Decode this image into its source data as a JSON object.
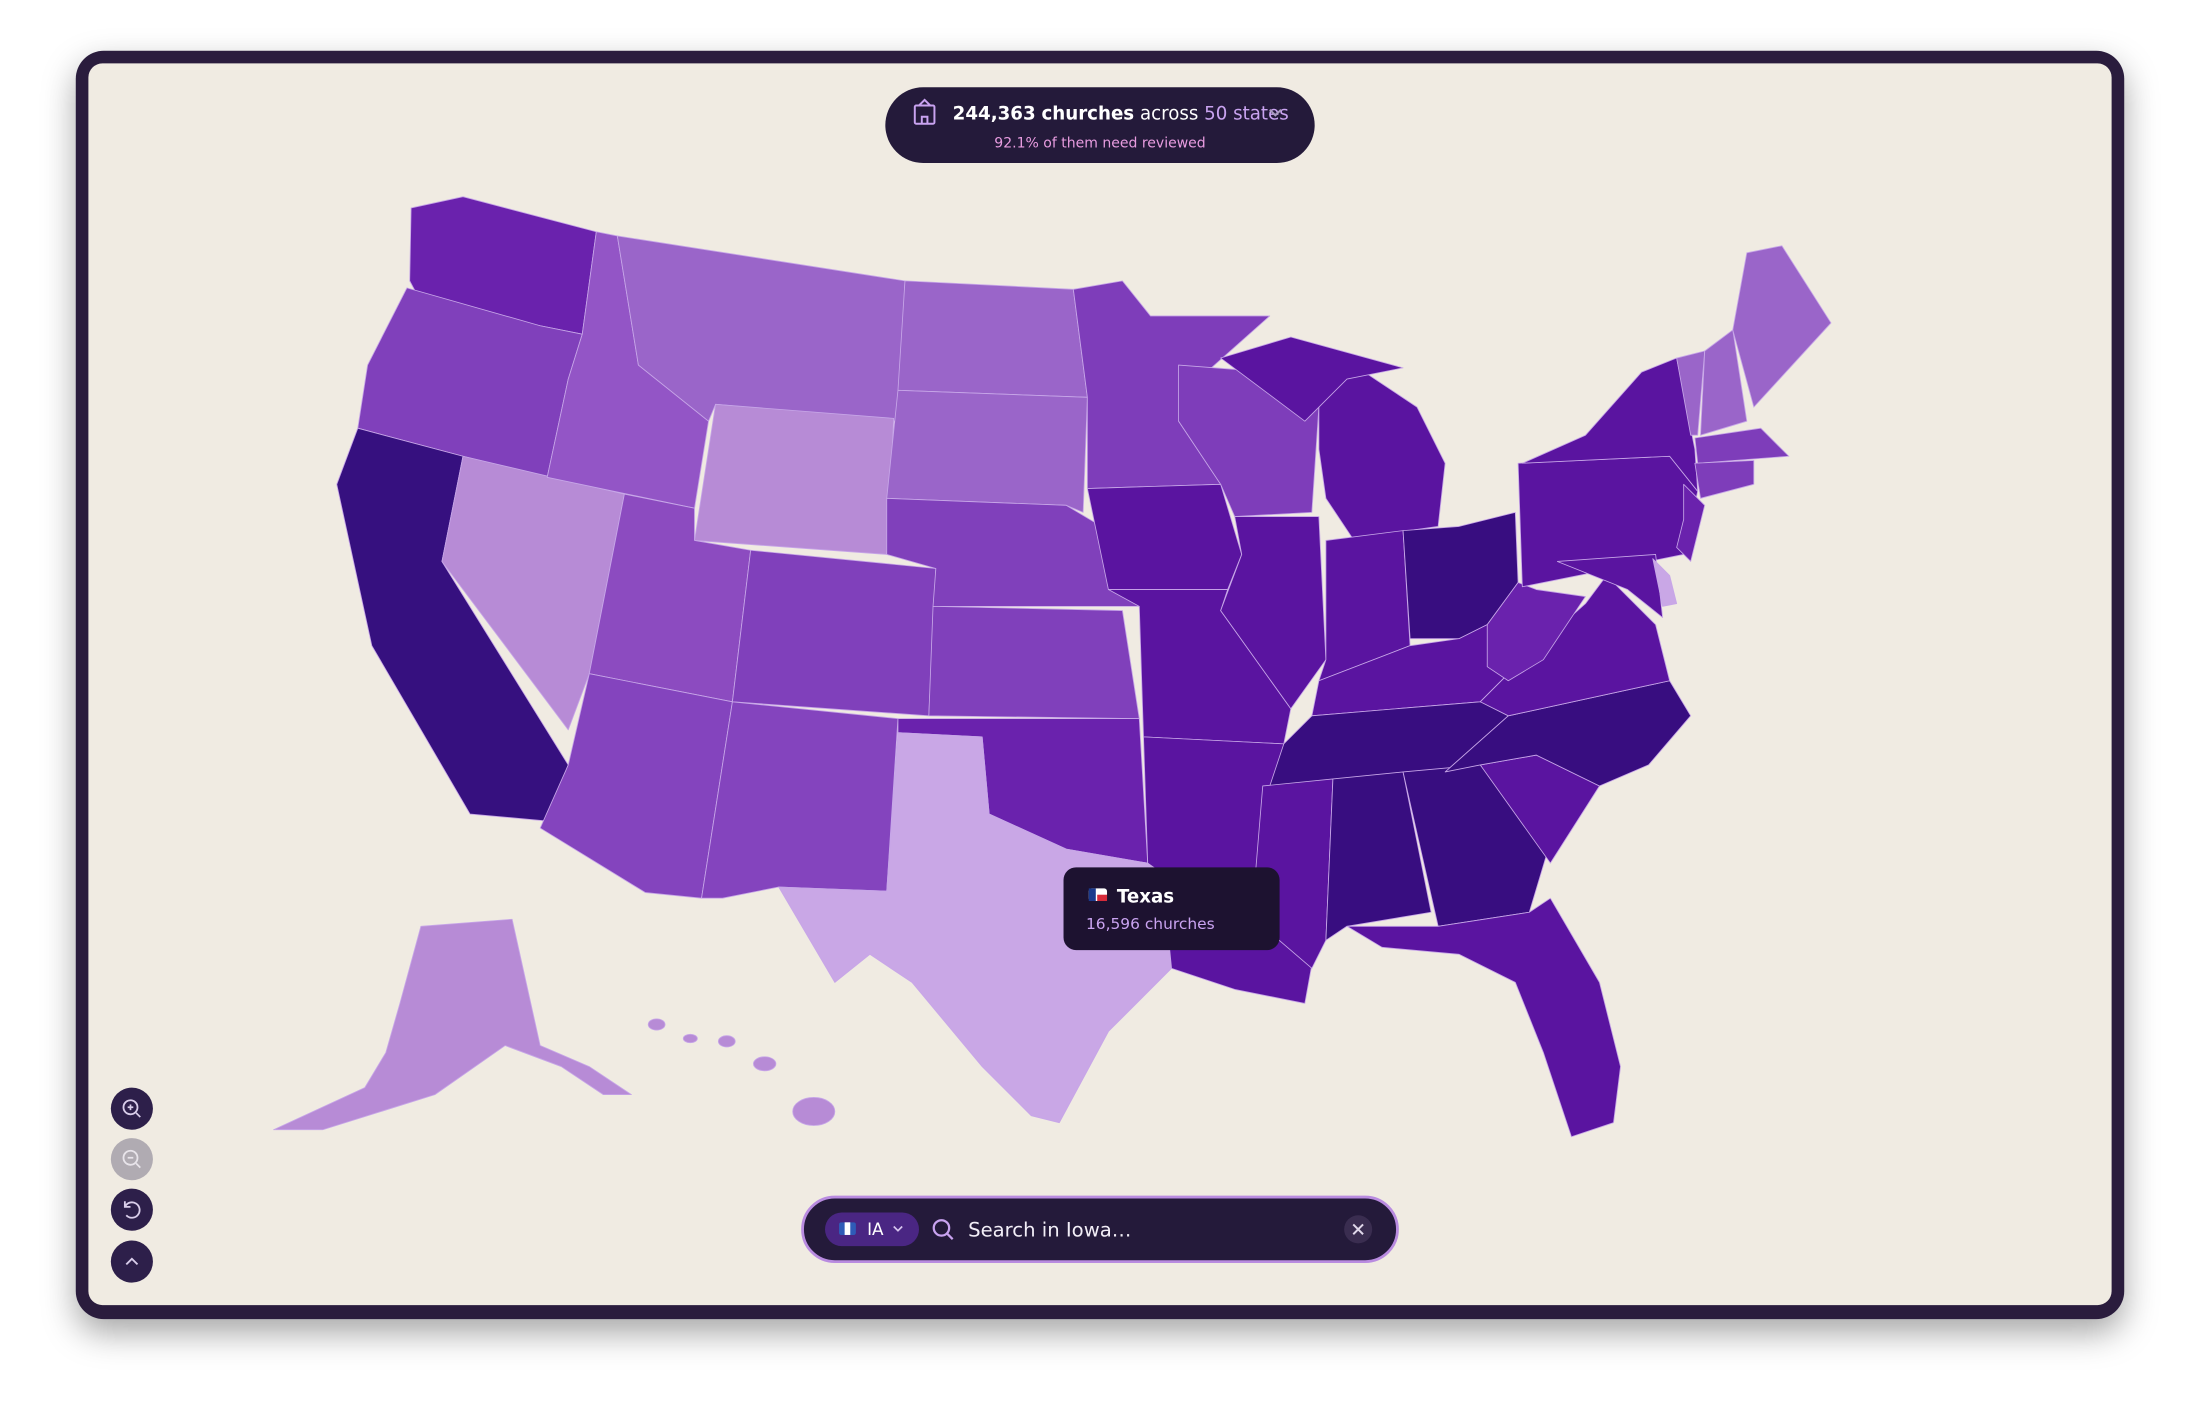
{
  "header": {
    "count": "244,363",
    "unit": "churches",
    "across": "across",
    "states": "50 states",
    "subtitle": "92.1% of them need reviewed"
  },
  "tooltip": {
    "state": "Texas",
    "count": "16,596 churches"
  },
  "search": {
    "state_code": "IA",
    "placeholder": "Search in Iowa…"
  }
}
